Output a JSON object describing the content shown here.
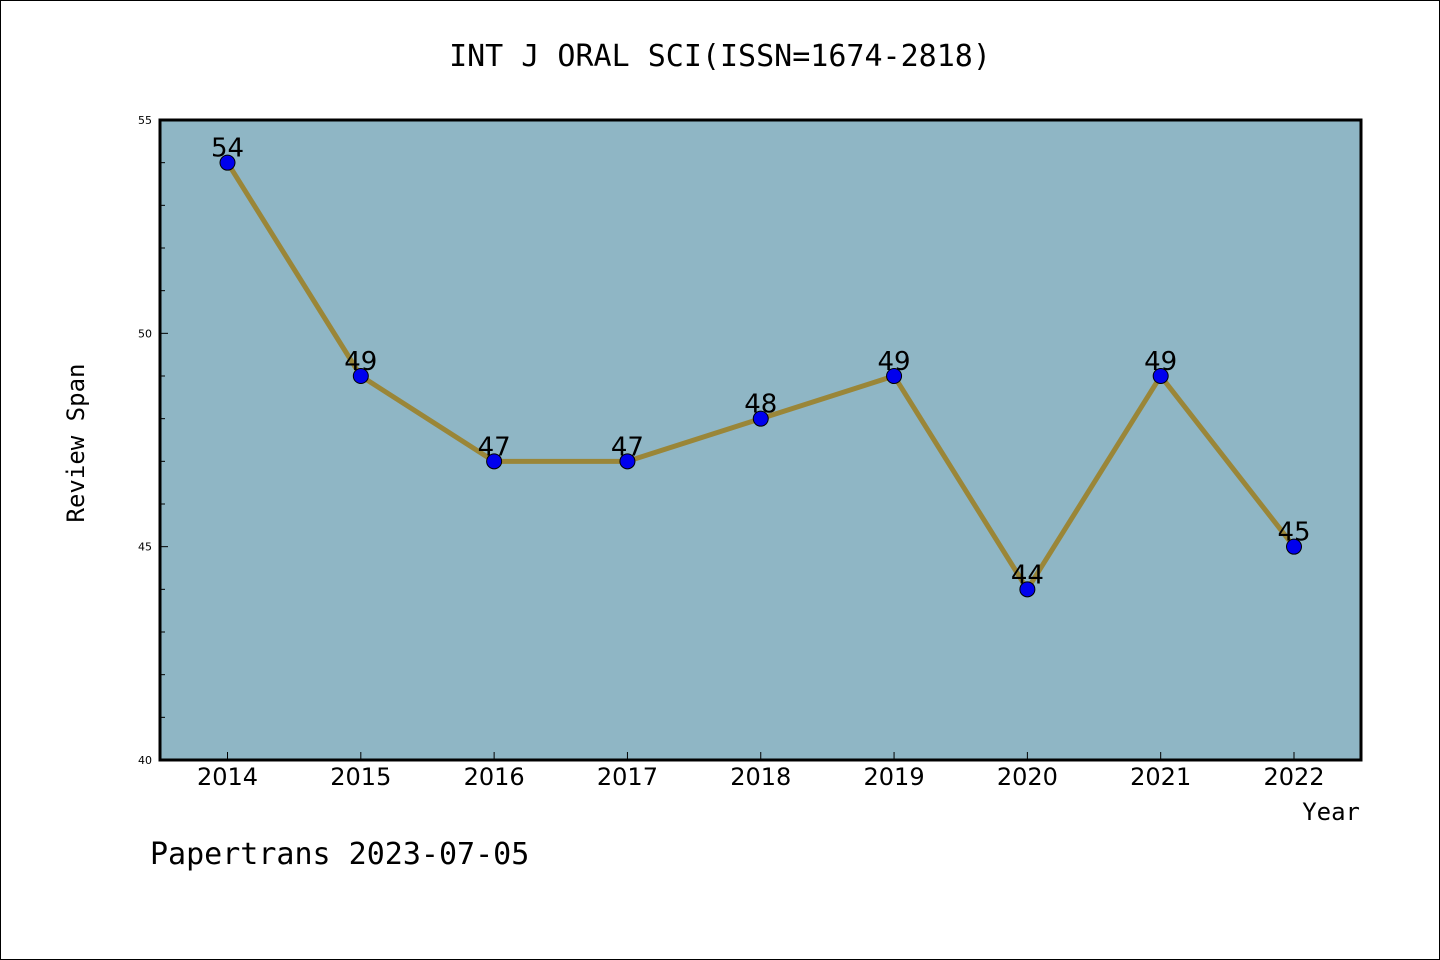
{
  "chart_data": {
    "type": "line",
    "title": "INT J ORAL SCI(ISSN=1674-2818)",
    "xlabel": "Year",
    "ylabel": "Review Span",
    "categories": [
      "2014",
      "2015",
      "2016",
      "2017",
      "2018",
      "2019",
      "2020",
      "2021",
      "2022"
    ],
    "values": [
      54,
      49,
      47,
      47,
      48,
      49,
      44,
      49,
      45
    ],
    "ylim": [
      40,
      55
    ],
    "yticks": [
      "40",
      "45",
      "50",
      "55"
    ],
    "grid": false,
    "legend": "none",
    "colors": {
      "plot_background": "#8fb6c5",
      "line": "#9a8638",
      "marker": "#0000ee"
    }
  },
  "footer": {
    "text": "Papertrans 2023-07-05"
  }
}
